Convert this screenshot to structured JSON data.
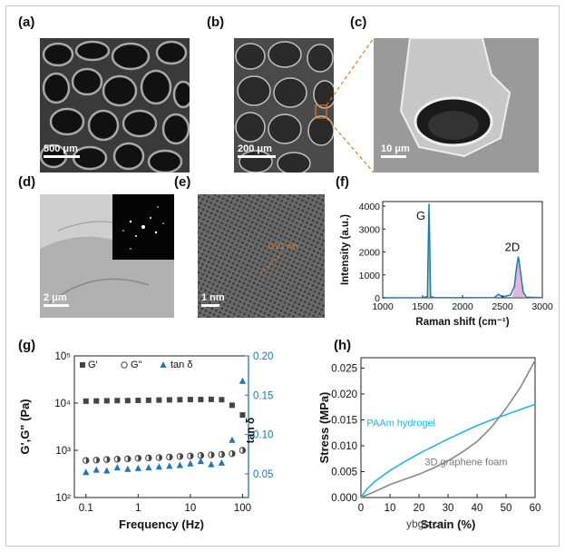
{
  "panels": {
    "a": {
      "label": "(a)",
      "scale": "500 μm"
    },
    "b": {
      "label": "(b)",
      "scale": "200 μm"
    },
    "c": {
      "label": "(c)",
      "scale": "10 μm"
    },
    "d": {
      "label": "(d)",
      "scale": "2 μm"
    },
    "e": {
      "label": "(e)",
      "scale": "1 nm",
      "annotation": "0.21 nm"
    },
    "f": {
      "label": "(f)"
    },
    "g": {
      "label": "(g)"
    },
    "h": {
      "label": "(h)"
    }
  },
  "watermark": "ybgs.cn",
  "colors": {
    "blue": "#1f77b4",
    "cyan": "#2ab3d6",
    "gray": "#888888",
    "orange": "#e07b22",
    "green": "#7ab648",
    "pink": "#c87ab8"
  },
  "chart_data": [
    {
      "id": "f",
      "type": "line",
      "xlabel": "Raman shift (cm⁻¹)",
      "ylabel": "Intensity (a.u.)",
      "xlim": [
        1000,
        3000
      ],
      "ylim": [
        0,
        4200
      ],
      "xticks": [
        "1000",
        "1500",
        "2000",
        "2500",
        "3000"
      ],
      "yticks": [
        "0",
        "1000",
        "2000",
        "3000",
        "4000"
      ],
      "annotations": [
        "G",
        "2D"
      ],
      "series": [
        {
          "x": [
            1000,
            1500,
            1560,
            1580,
            1600,
            1650,
            2000,
            2400,
            2450,
            2500,
            2600,
            2650,
            2680,
            2700,
            2720,
            2760,
            2800,
            3000
          ],
          "y": [
            0,
            5,
            60,
            4100,
            60,
            5,
            5,
            10,
            150,
            40,
            120,
            500,
            1400,
            1800,
            1300,
            250,
            30,
            5
          ]
        }
      ]
    },
    {
      "id": "g",
      "type": "scatter",
      "xlabel": "Frequency (Hz)",
      "ylabel": "G',G\" (Pa)",
      "y2label": "tan δ",
      "xlog": true,
      "ylog": true,
      "xlim": [
        0.06,
        130
      ],
      "ylim": [
        100,
        100000
      ],
      "y2lim": [
        0.02,
        0.2
      ],
      "xticks": [
        "0.1",
        "1",
        "10",
        "100"
      ],
      "yticks": [
        "10²",
        "10³",
        "10⁴",
        "10⁵"
      ],
      "y2ticks": [
        "0.05",
        "0.10",
        "0.15",
        "0.20"
      ],
      "x": [
        0.1,
        0.1585,
        0.2512,
        0.3981,
        0.631,
        1.0,
        1.585,
        2.512,
        3.981,
        6.31,
        10,
        15.85,
        25.12,
        39.81,
        63.1,
        100
      ],
      "series": [
        {
          "name": "G'",
          "axis": "left",
          "values": [
            11000,
            11100,
            11200,
            11300,
            11300,
            11400,
            11500,
            11600,
            11700,
            11800,
            11900,
            11900,
            12000,
            11800,
            9000,
            5600
          ]
        },
        {
          "name": "G\"",
          "axis": "left",
          "values": [
            610,
            620,
            640,
            650,
            660,
            680,
            690,
            700,
            720,
            740,
            760,
            780,
            800,
            820,
            850,
            1000
          ]
        },
        {
          "name": "tan δ",
          "axis": "right",
          "values": [
            0.052,
            0.055,
            0.054,
            0.058,
            0.056,
            0.057,
            0.058,
            0.059,
            0.06,
            0.061,
            0.063,
            0.066,
            0.062,
            0.064,
            0.093,
            0.168
          ]
        }
      ]
    },
    {
      "id": "h",
      "type": "line",
      "xlabel": "Strain (%)",
      "ylabel": "Stress (MPa)",
      "xlim": [
        0,
        60
      ],
      "ylim": [
        0,
        0.027
      ],
      "xticks": [
        "0",
        "10",
        "20",
        "30",
        "40",
        "50",
        "60"
      ],
      "yticks": [
        "0.000",
        "0.005",
        "0.010",
        "0.015",
        "0.020",
        "0.025"
      ],
      "series": [
        {
          "name": "PAAm hydrogel",
          "x": [
            0,
            2,
            5,
            10,
            15,
            20,
            25,
            30,
            35,
            40,
            45,
            50,
            55,
            60
          ],
          "values": [
            0,
            0.0016,
            0.0032,
            0.0052,
            0.0069,
            0.0085,
            0.0099,
            0.0113,
            0.0126,
            0.0139,
            0.015,
            0.016,
            0.017,
            0.018
          ]
        },
        {
          "name": "3D graphene foam",
          "x": [
            0,
            5,
            10,
            15,
            20,
            25,
            30,
            35,
            40,
            45,
            50,
            55,
            60
          ],
          "values": [
            0,
            0.0012,
            0.0025,
            0.0035,
            0.0045,
            0.0057,
            0.0071,
            0.0088,
            0.0108,
            0.0136,
            0.0172,
            0.0213,
            0.0265
          ]
        }
      ]
    }
  ]
}
